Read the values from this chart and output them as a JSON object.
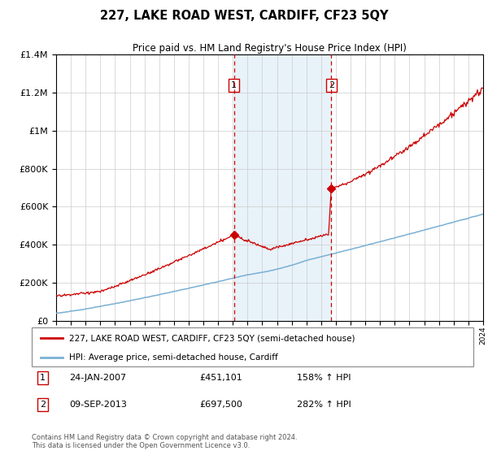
{
  "title": "227, LAKE ROAD WEST, CARDIFF, CF23 5QY",
  "subtitle": "Price paid vs. HM Land Registry's House Price Index (HPI)",
  "legend_line1": "227, LAKE ROAD WEST, CARDIFF, CF23 5QY (semi-detached house)",
  "legend_line2": "HPI: Average price, semi-detached house, Cardiff",
  "annotation1_label": "1",
  "annotation1_date": "24-JAN-2007",
  "annotation1_price": "£451,101",
  "annotation1_hpi": "158% ↑ HPI",
  "annotation2_label": "2",
  "annotation2_date": "09-SEP-2013",
  "annotation2_price": "£697,500",
  "annotation2_hpi": "282% ↑ HPI",
  "footer": "Contains HM Land Registry data © Crown copyright and database right 2024.\nThis data is licensed under the Open Government Licence v3.0.",
  "red_color": "#cc0000",
  "blue_color": "#7ab0d4",
  "vline_color": "#cc0000",
  "shade_color": "#daeaf5",
  "year_start": 1995,
  "year_end": 2024,
  "ylim_max": 1400000,
  "sale1_year": 2007.07,
  "sale1_price": 451101,
  "sale2_year": 2013.69,
  "sale2_price": 697500
}
